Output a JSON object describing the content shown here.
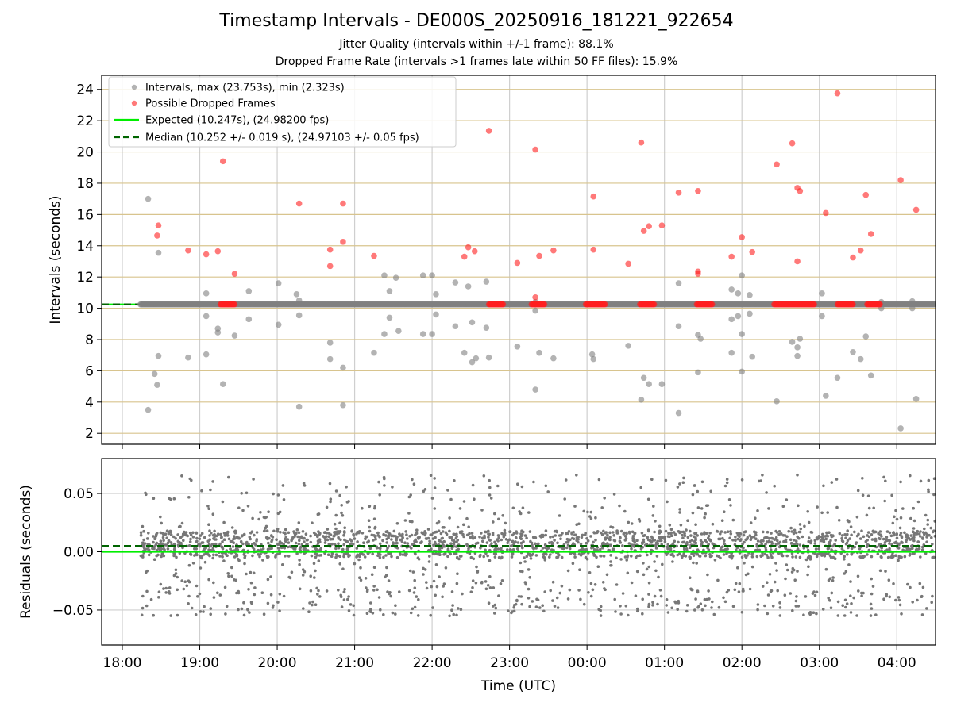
{
  "figure": {
    "title": "Timestamp Intervals - DE000S_20250916_181221_922654",
    "subtitle_jitter": "Jitter Quality (intervals within +/-1 frame): 88.1%",
    "subtitle_dropped": "Dropped Frame Rate (intervals >1 frames late within 50 FF files): 15.9%"
  },
  "colors": {
    "intervals": "#808080",
    "dropped": "#ff2020",
    "expected": "#00ee00",
    "median": "#006400",
    "hgrid": "#d8c48e",
    "vgrid": "#cfcfcf"
  },
  "chart_data": [
    {
      "type": "scatter",
      "panel": "top",
      "ylabel": "Intervals (seconds)",
      "xlim": [
        "17:44",
        "04:30"
      ],
      "ylim": [
        1.3,
        24.9
      ],
      "yticks": [
        2,
        4,
        6,
        8,
        10,
        12,
        14,
        16,
        18,
        20,
        22,
        24
      ],
      "grid": true,
      "legend_position": "top-left",
      "legend": [
        "Intervals, max (23.753s), min (2.323s)",
        "Possible Dropped Frames",
        "Expected (10.247s), (24.98200 fps)",
        "Median (10.252 +/- 0.019 s), (24.97103 +/- 0.05 fps)"
      ],
      "expected_line": 10.247,
      "median_line": 10.252,
      "baseline_band": {
        "start": "18:14",
        "end": "04:30",
        "value": 10.25
      },
      "series": [
        {
          "name": "Intervals",
          "points": [
            [
              "18:20",
              17.0
            ],
            [
              "18:20",
              3.5
            ],
            [
              "18:25",
              5.8
            ],
            [
              "18:27",
              5.1
            ],
            [
              "18:28",
              13.55
            ],
            [
              "18:28",
              6.95
            ],
            [
              "18:51",
              6.85
            ],
            [
              "19:05",
              10.95
            ],
            [
              "19:05",
              9.5
            ],
            [
              "19:05",
              7.05
            ],
            [
              "19:14",
              8.7
            ],
            [
              "19:14",
              8.45
            ],
            [
              "19:18",
              5.15
            ],
            [
              "19:27",
              8.25
            ],
            [
              "19:38",
              11.1
            ],
            [
              "19:38",
              9.3
            ],
            [
              "20:01",
              11.6
            ],
            [
              "20:01",
              8.95
            ],
            [
              "20:15",
              10.9
            ],
            [
              "20:17",
              10.5
            ],
            [
              "20:17",
              9.55
            ],
            [
              "20:17",
              3.7
            ],
            [
              "20:41",
              7.8
            ],
            [
              "20:41",
              6.75
            ],
            [
              "20:51",
              6.2
            ],
            [
              "20:51",
              3.8
            ],
            [
              "21:15",
              7.15
            ],
            [
              "21:23",
              12.1
            ],
            [
              "21:23",
              8.35
            ],
            [
              "21:27",
              11.1
            ],
            [
              "21:27",
              9.4
            ],
            [
              "21:32",
              11.95
            ],
            [
              "21:34",
              8.55
            ],
            [
              "21:53",
              12.1
            ],
            [
              "21:53",
              8.35
            ],
            [
              "22:00",
              12.1
            ],
            [
              "22:00",
              8.35
            ],
            [
              "22:03",
              10.9
            ],
            [
              "22:03",
              9.6
            ],
            [
              "22:18",
              11.65
            ],
            [
              "22:18",
              8.85
            ],
            [
              "22:25",
              7.15
            ],
            [
              "22:28",
              11.4
            ],
            [
              "22:31",
              9.1
            ],
            [
              "22:31",
              6.55
            ],
            [
              "22:34",
              6.8
            ],
            [
              "22:42",
              11.7
            ],
            [
              "22:42",
              8.75
            ],
            [
              "22:44",
              6.85
            ],
            [
              "23:06",
              7.55
            ],
            [
              "23:20",
              10.4
            ],
            [
              "23:20",
              9.85
            ],
            [
              "23:20",
              4.8
            ],
            [
              "23:23",
              7.15
            ],
            [
              "23:34",
              6.8
            ],
            [
              "00:04",
              7.05
            ],
            [
              "00:05",
              6.75
            ],
            [
              "00:32",
              7.6
            ],
            [
              "00:42",
              4.15
            ],
            [
              "00:44",
              5.55
            ],
            [
              "00:48",
              5.15
            ],
            [
              "00:58",
              5.15
            ],
            [
              "01:11",
              11.6
            ],
            [
              "01:11",
              8.85
            ],
            [
              "01:11",
              3.3
            ],
            [
              "01:26",
              8.3
            ],
            [
              "01:26",
              5.9
            ],
            [
              "01:28",
              8.05
            ],
            [
              "01:52",
              11.2
            ],
            [
              "01:52",
              9.3
            ],
            [
              "01:52",
              7.15
            ],
            [
              "01:57",
              10.95
            ],
            [
              "01:57",
              9.5
            ],
            [
              "02:00",
              12.1
            ],
            [
              "02:00",
              8.35
            ],
            [
              "02:00",
              5.95
            ],
            [
              "02:06",
              10.85
            ],
            [
              "02:06",
              9.65
            ],
            [
              "02:08",
              6.9
            ],
            [
              "02:27",
              4.05
            ],
            [
              "02:39",
              7.85
            ],
            [
              "02:43",
              7.5
            ],
            [
              "02:43",
              6.95
            ],
            [
              "02:45",
              8.05
            ],
            [
              "03:02",
              10.95
            ],
            [
              "03:02",
              9.5
            ],
            [
              "03:05",
              4.4
            ],
            [
              "03:14",
              5.55
            ],
            [
              "03:26",
              7.2
            ],
            [
              "03:32",
              6.75
            ],
            [
              "03:36",
              8.2
            ],
            [
              "03:40",
              5.7
            ],
            [
              "03:48",
              10.4
            ],
            [
              "03:48",
              10.0
            ],
            [
              "04:03",
              2.32
            ],
            [
              "04:12",
              10.45
            ],
            [
              "04:12",
              10.0
            ],
            [
              "04:15",
              4.2
            ]
          ]
        },
        {
          "name": "Possible Dropped Frames",
          "points": [
            [
              "18:27",
              14.65
            ],
            [
              "18:28",
              15.3
            ],
            [
              "18:51",
              13.7
            ],
            [
              "19:05",
              13.45
            ],
            [
              "19:14",
              13.65
            ],
            [
              "19:18",
              19.4
            ],
            [
              "19:27",
              12.2
            ],
            [
              "20:17",
              16.7
            ],
            [
              "20:41",
              13.75
            ],
            [
              "20:41",
              12.7
            ],
            [
              "20:51",
              16.7
            ],
            [
              "20:51",
              14.25
            ],
            [
              "21:15",
              13.35
            ],
            [
              "22:25",
              13.3
            ],
            [
              "22:28",
              13.9
            ],
            [
              "22:33",
              13.65
            ],
            [
              "22:44",
              21.35
            ],
            [
              "23:06",
              12.9
            ],
            [
              "23:20",
              20.15
            ],
            [
              "23:20",
              10.7
            ],
            [
              "23:23",
              13.35
            ],
            [
              "23:34",
              13.7
            ],
            [
              "00:05",
              17.15
            ],
            [
              "00:05",
              13.75
            ],
            [
              "00:32",
              12.85
            ],
            [
              "00:42",
              20.6
            ],
            [
              "00:44",
              14.95
            ],
            [
              "00:48",
              15.25
            ],
            [
              "00:58",
              15.3
            ],
            [
              "01:11",
              17.4
            ],
            [
              "01:26",
              17.5
            ],
            [
              "01:26",
              12.35
            ],
            [
              "01:26",
              12.2
            ],
            [
              "01:52",
              13.3
            ],
            [
              "02:00",
              14.55
            ],
            [
              "02:08",
              13.6
            ],
            [
              "02:27",
              19.2
            ],
            [
              "02:39",
              20.55
            ],
            [
              "02:43",
              17.7
            ],
            [
              "02:45",
              17.5
            ],
            [
              "02:43",
              13.0
            ],
            [
              "03:05",
              16.1
            ],
            [
              "03:14",
              23.75
            ],
            [
              "03:26",
              13.25
            ],
            [
              "03:32",
              13.7
            ],
            [
              "03:36",
              17.25
            ],
            [
              "03:40",
              14.75
            ],
            [
              "04:03",
              18.2
            ],
            [
              "04:15",
              16.3
            ]
          ],
          "clusters": [
            {
              "start": "19:16",
              "end": "19:27",
              "value": 10.25
            },
            {
              "start": "22:44",
              "end": "22:55",
              "value": 10.25
            },
            {
              "start": "23:17",
              "end": "23:27",
              "value": 10.25
            },
            {
              "start": "23:59",
              "end": "00:14",
              "value": 10.25
            },
            {
              "start": "00:41",
              "end": "00:52",
              "value": 10.25
            },
            {
              "start": "01:25",
              "end": "01:37",
              "value": 10.25
            },
            {
              "start": "02:25",
              "end": "02:56",
              "value": 10.25
            },
            {
              "start": "03:14",
              "end": "03:26",
              "value": 10.25
            },
            {
              "start": "03:37",
              "end": "03:47",
              "value": 10.25
            }
          ]
        }
      ]
    },
    {
      "type": "scatter",
      "panel": "bottom",
      "ylabel": "Residuals (seconds)",
      "xlabel": "Time (UTC)",
      "xlim": [
        "17:44",
        "04:30"
      ],
      "ylim": [
        -0.08,
        0.08
      ],
      "yticks": [
        -0.05,
        0.0,
        0.05
      ],
      "ytick_labels": [
        "−0.05",
        "0.00",
        "0.05"
      ],
      "xticks": [
        "18:00",
        "19:00",
        "20:00",
        "21:00",
        "22:00",
        "23:00",
        "00:00",
        "01:00",
        "02:00",
        "03:00",
        "04:00"
      ],
      "grid": true,
      "expected_line": 0.0,
      "median_line": 0.005,
      "series": [
        {
          "name": "Residuals",
          "start": "18:14",
          "end": "04:30",
          "central_band": [
            -0.005,
            0.018
          ],
          "upper_outlier_range": [
            0.042,
            0.066
          ],
          "lower_outlier_range": [
            -0.055,
            -0.03
          ],
          "scattered_range": [
            -0.03,
            0.04
          ]
        }
      ]
    }
  ]
}
